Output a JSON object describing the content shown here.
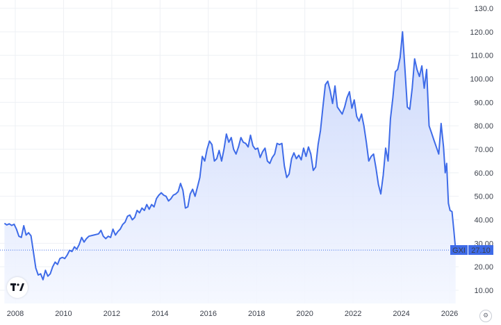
{
  "chart_data": {
    "type": "line",
    "ticker": "GXI",
    "last_value": 27.1,
    "last_value_label": "27.10",
    "ylim": [
      0,
      130
    ],
    "y_ticks": [
      "10.00",
      "20.00",
      "30.00",
      "40.00",
      "50.00",
      "60.00",
      "70.00",
      "80.00",
      "90.00",
      "100.00",
      "110.00",
      "120.00",
      "130.0"
    ],
    "x_ticks": [
      "2008",
      "2010",
      "2012",
      "2014",
      "2016",
      "2018",
      "2020",
      "2022",
      "2024",
      "2026"
    ],
    "grid": true,
    "colors": {
      "line": "#3e6be8",
      "fill_top": "#c9d6fb",
      "fill_bottom": "#f4f7ff",
      "label_bg": "#3e6be8"
    },
    "series": [
      {
        "values": [
          [
            2007.55,
            38.5
          ],
          [
            2007.65,
            37.8
          ],
          [
            2007.75,
            38.3
          ],
          [
            2007.85,
            37.6
          ],
          [
            2007.95,
            38.1
          ],
          [
            2008.05,
            36.0
          ],
          [
            2008.15,
            33.0
          ],
          [
            2008.25,
            32.5
          ],
          [
            2008.35,
            37.5
          ],
          [
            2008.45,
            33.5
          ],
          [
            2008.55,
            34.5
          ],
          [
            2008.65,
            33.2
          ],
          [
            2008.75,
            26.5
          ],
          [
            2008.85,
            19.5
          ],
          [
            2008.95,
            16.5
          ],
          [
            2009.05,
            17.0
          ],
          [
            2009.15,
            14.5
          ],
          [
            2009.25,
            18.5
          ],
          [
            2009.35,
            16.0
          ],
          [
            2009.45,
            17.0
          ],
          [
            2009.55,
            20.0
          ],
          [
            2009.65,
            22.0
          ],
          [
            2009.75,
            21.0
          ],
          [
            2009.85,
            23.5
          ],
          [
            2009.95,
            24.0
          ],
          [
            2010.05,
            23.5
          ],
          [
            2010.15,
            25.0
          ],
          [
            2010.25,
            27.0
          ],
          [
            2010.35,
            26.5
          ],
          [
            2010.45,
            28.5
          ],
          [
            2010.55,
            27.5
          ],
          [
            2010.65,
            29.5
          ],
          [
            2010.75,
            32.5
          ],
          [
            2010.85,
            30.5
          ],
          [
            2010.95,
            32.0
          ],
          [
            2011.05,
            33.0
          ],
          [
            2011.25,
            33.5
          ],
          [
            2011.45,
            34.0
          ],
          [
            2011.55,
            35.5
          ],
          [
            2011.65,
            33.0
          ],
          [
            2011.75,
            32.0
          ],
          [
            2011.85,
            33.0
          ],
          [
            2011.95,
            32.5
          ],
          [
            2012.05,
            36.0
          ],
          [
            2012.15,
            33.5
          ],
          [
            2012.25,
            35.0
          ],
          [
            2012.35,
            36.0
          ],
          [
            2012.45,
            38.0
          ],
          [
            2012.55,
            39.0
          ],
          [
            2012.65,
            41.5
          ],
          [
            2012.75,
            42.0
          ],
          [
            2012.85,
            40.0
          ],
          [
            2012.95,
            41.0
          ],
          [
            2013.05,
            44.0
          ],
          [
            2013.15,
            43.0
          ],
          [
            2013.25,
            45.0
          ],
          [
            2013.35,
            44.0
          ],
          [
            2013.45,
            46.5
          ],
          [
            2013.55,
            44.5
          ],
          [
            2013.65,
            46.5
          ],
          [
            2013.75,
            45.5
          ],
          [
            2013.85,
            49.0
          ],
          [
            2013.95,
            50.5
          ],
          [
            2014.05,
            51.5
          ],
          [
            2014.15,
            50.5
          ],
          [
            2014.25,
            50.0
          ],
          [
            2014.35,
            48.0
          ],
          [
            2014.45,
            49.0
          ],
          [
            2014.55,
            50.5
          ],
          [
            2014.65,
            51.0
          ],
          [
            2014.75,
            52.0
          ],
          [
            2014.85,
            55.5
          ],
          [
            2014.95,
            52.5
          ],
          [
            2015.05,
            45.0
          ],
          [
            2015.15,
            45.5
          ],
          [
            2015.25,
            51.0
          ],
          [
            2015.35,
            53.0
          ],
          [
            2015.45,
            50.0
          ],
          [
            2015.55,
            54.0
          ],
          [
            2015.65,
            58.0
          ],
          [
            2015.75,
            67.0
          ],
          [
            2015.85,
            65.0
          ],
          [
            2015.95,
            70.0
          ],
          [
            2016.05,
            73.5
          ],
          [
            2016.15,
            72.0
          ],
          [
            2016.25,
            65.0
          ],
          [
            2016.35,
            66.0
          ],
          [
            2016.45,
            69.5
          ],
          [
            2016.55,
            65.0
          ],
          [
            2016.65,
            70.0
          ],
          [
            2016.75,
            76.5
          ],
          [
            2016.85,
            73.0
          ],
          [
            2016.95,
            75.0
          ],
          [
            2017.05,
            70.0
          ],
          [
            2017.15,
            68.0
          ],
          [
            2017.25,
            71.0
          ],
          [
            2017.35,
            75.0
          ],
          [
            2017.45,
            73.0
          ],
          [
            2017.55,
            72.5
          ],
          [
            2017.65,
            71.0
          ],
          [
            2017.75,
            76.0
          ],
          [
            2017.85,
            71.5
          ],
          [
            2017.95,
            70.0
          ],
          [
            2018.05,
            70.5
          ],
          [
            2018.15,
            66.5
          ],
          [
            2018.25,
            69.0
          ],
          [
            2018.35,
            70.5
          ],
          [
            2018.45,
            65.0
          ],
          [
            2018.55,
            64.0
          ],
          [
            2018.65,
            66.5
          ],
          [
            2018.75,
            68.0
          ],
          [
            2018.85,
            72.5
          ],
          [
            2018.95,
            72.0
          ],
          [
            2019.05,
            72.5
          ],
          [
            2019.15,
            63.0
          ],
          [
            2019.25,
            58.0
          ],
          [
            2019.35,
            59.5
          ],
          [
            2019.45,
            66.0
          ],
          [
            2019.55,
            68.5
          ],
          [
            2019.65,
            66.0
          ],
          [
            2019.75,
            67.5
          ],
          [
            2019.85,
            65.5
          ],
          [
            2019.95,
            70.5
          ],
          [
            2020.05,
            67.0
          ],
          [
            2020.15,
            71.0
          ],
          [
            2020.25,
            68.0
          ],
          [
            2020.35,
            61.0
          ],
          [
            2020.45,
            62.5
          ],
          [
            2020.55,
            72.0
          ],
          [
            2020.65,
            78.0
          ],
          [
            2020.75,
            88.0
          ],
          [
            2020.85,
            97.5
          ],
          [
            2020.95,
            99.0
          ],
          [
            2021.05,
            95.0
          ],
          [
            2021.15,
            89.5
          ],
          [
            2021.25,
            97.0
          ],
          [
            2021.35,
            88.0
          ],
          [
            2021.45,
            86.5
          ],
          [
            2021.55,
            85.0
          ],
          [
            2021.65,
            88.0
          ],
          [
            2021.75,
            92.0
          ],
          [
            2021.85,
            94.5
          ],
          [
            2021.95,
            87.5
          ],
          [
            2022.05,
            91.0
          ],
          [
            2022.15,
            84.0
          ],
          [
            2022.25,
            82.0
          ],
          [
            2022.35,
            85.0
          ],
          [
            2022.45,
            80.0
          ],
          [
            2022.55,
            73.0
          ],
          [
            2022.65,
            65.0
          ],
          [
            2022.75,
            67.0
          ],
          [
            2022.85,
            68.0
          ],
          [
            2022.95,
            62.0
          ],
          [
            2023.05,
            55.0
          ],
          [
            2023.15,
            51.0
          ],
          [
            2023.25,
            59.0
          ],
          [
            2023.35,
            70.5
          ],
          [
            2023.45,
            65.0
          ],
          [
            2023.55,
            83.0
          ],
          [
            2023.65,
            92.0
          ],
          [
            2023.75,
            103.0
          ],
          [
            2023.85,
            104.0
          ],
          [
            2023.95,
            109.0
          ],
          [
            2024.05,
            120.0
          ],
          [
            2024.15,
            104.0
          ],
          [
            2024.25,
            88.0
          ],
          [
            2024.35,
            87.0
          ],
          [
            2024.45,
            96.0
          ],
          [
            2024.55,
            108.5
          ],
          [
            2024.65,
            104.0
          ],
          [
            2024.75,
            101.0
          ],
          [
            2024.85,
            105.5
          ],
          [
            2024.95,
            96.0
          ],
          [
            2025.05,
            104.0
          ],
          [
            2025.15,
            80.0
          ],
          [
            2025.25,
            77.0
          ],
          [
            2025.35,
            74.0
          ],
          [
            2025.45,
            71.0
          ],
          [
            2025.55,
            68.0
          ],
          [
            2025.65,
            81.0
          ],
          [
            2025.75,
            71.0
          ],
          [
            2025.82,
            60.0
          ],
          [
            2025.88,
            64.0
          ],
          [
            2025.95,
            47.0
          ],
          [
            2026.02,
            44.0
          ],
          [
            2026.1,
            43.5
          ],
          [
            2026.18,
            35.0
          ],
          [
            2026.25,
            27.1
          ]
        ]
      }
    ]
  }
}
